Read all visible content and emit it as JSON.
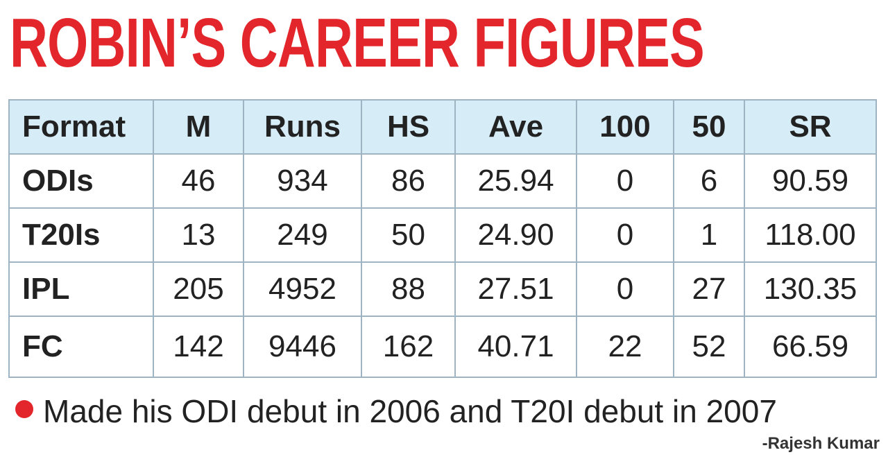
{
  "title": "ROBIN’S CAREER FIGURES",
  "table": {
    "header": [
      "Format",
      "M",
      "Runs",
      "HS",
      "Ave",
      "100",
      "50",
      "SR"
    ],
    "rows": [
      [
        "ODIs",
        "46",
        "934",
        "86",
        "25.94",
        "0",
        "6",
        "90.59"
      ],
      [
        "T20Is",
        "13",
        "249",
        "50",
        "24.90",
        "0",
        "1",
        "118.00"
      ],
      [
        "IPL",
        "205",
        "4952",
        "88",
        "27.51",
        "0",
        "27",
        "130.35"
      ],
      [
        "FC",
        "142",
        "9446",
        "162",
        "40.71",
        "22",
        "52",
        "66.59"
      ]
    ]
  },
  "note": "Made his ODI debut in 2006 and T20I debut in 2007",
  "credit": "-Rajesh Kumar"
}
